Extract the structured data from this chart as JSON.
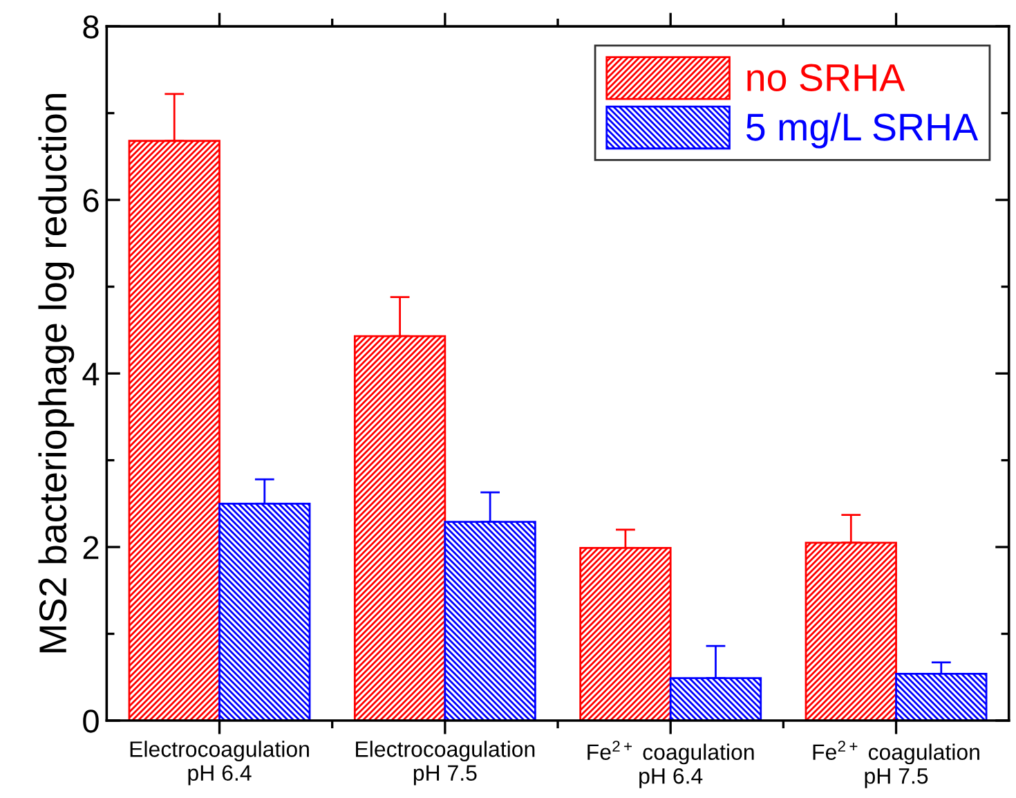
{
  "chart_data": {
    "type": "bar",
    "ylabel": "MS2 bacteriophage log reduction",
    "categories": [
      "Electrocoagulation\npH 6.4",
      "Electrocoagulation\npH 7.5",
      "Fe$^{2+}$ coagulation\npH 6.4",
      "Fe$^{2+}$ coagulation\npH 7.5"
    ],
    "series": [
      {
        "name": "no SRHA",
        "color": "#ff0000",
        "values": [
          6.68,
          4.43,
          1.99,
          2.05
        ],
        "errors": [
          [
            6.68,
            7.22
          ],
          [
            4.43,
            4.88
          ],
          [
            1.99,
            2.2
          ],
          [
            2.05,
            2.37
          ]
        ]
      },
      {
        "name": "5 mg/L SRHA",
        "color": "#0000ff",
        "values": [
          2.5,
          2.29,
          0.49,
          0.54
        ],
        "errors": [
          [
            2.5,
            2.78
          ],
          [
            2.29,
            2.63
          ],
          [
            0.49,
            0.86
          ],
          [
            0.54,
            0.67
          ]
        ]
      }
    ],
    "ylim": [
      0,
      8
    ],
    "yticks": [
      0,
      {
        "value": 1,
        "label": null
      },
      2,
      {
        "value": 3,
        "label": null
      },
      4,
      {
        "value": 5,
        "label": null
      },
      6,
      {
        "value": 7,
        "label": null
      },
      8
    ],
    "legend": "top right",
    "grid": false
  }
}
